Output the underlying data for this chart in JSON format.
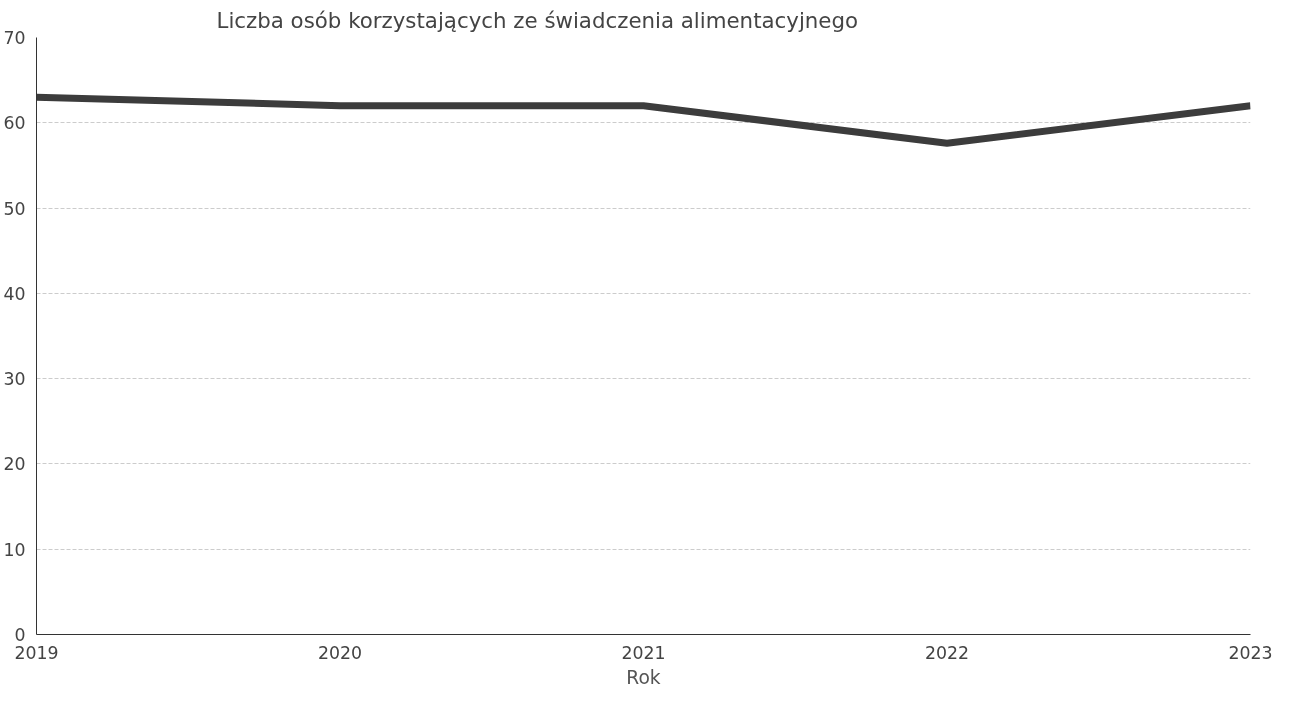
{
  "chart_data": {
    "type": "line",
    "title": "Liczba osób korzystających ze świadczenia alimentacyjnego",
    "xlabel": "Rok",
    "x": [
      2019,
      2020,
      2021,
      2022,
      2023
    ],
    "series": [
      {
        "color": "#3c3c3c",
        "values": [
          63,
          62,
          62,
          57.6,
          62
        ]
      }
    ],
    "xlim": [
      2019,
      2023
    ],
    "xticks": [
      2019,
      2020,
      2021,
      2022,
      2023
    ],
    "ylim": [
      0,
      70
    ],
    "yticks": [
      0,
      10,
      20,
      30,
      40,
      50,
      60,
      70
    ],
    "grid": "y",
    "marker": "none",
    "line_style": "solid"
  }
}
